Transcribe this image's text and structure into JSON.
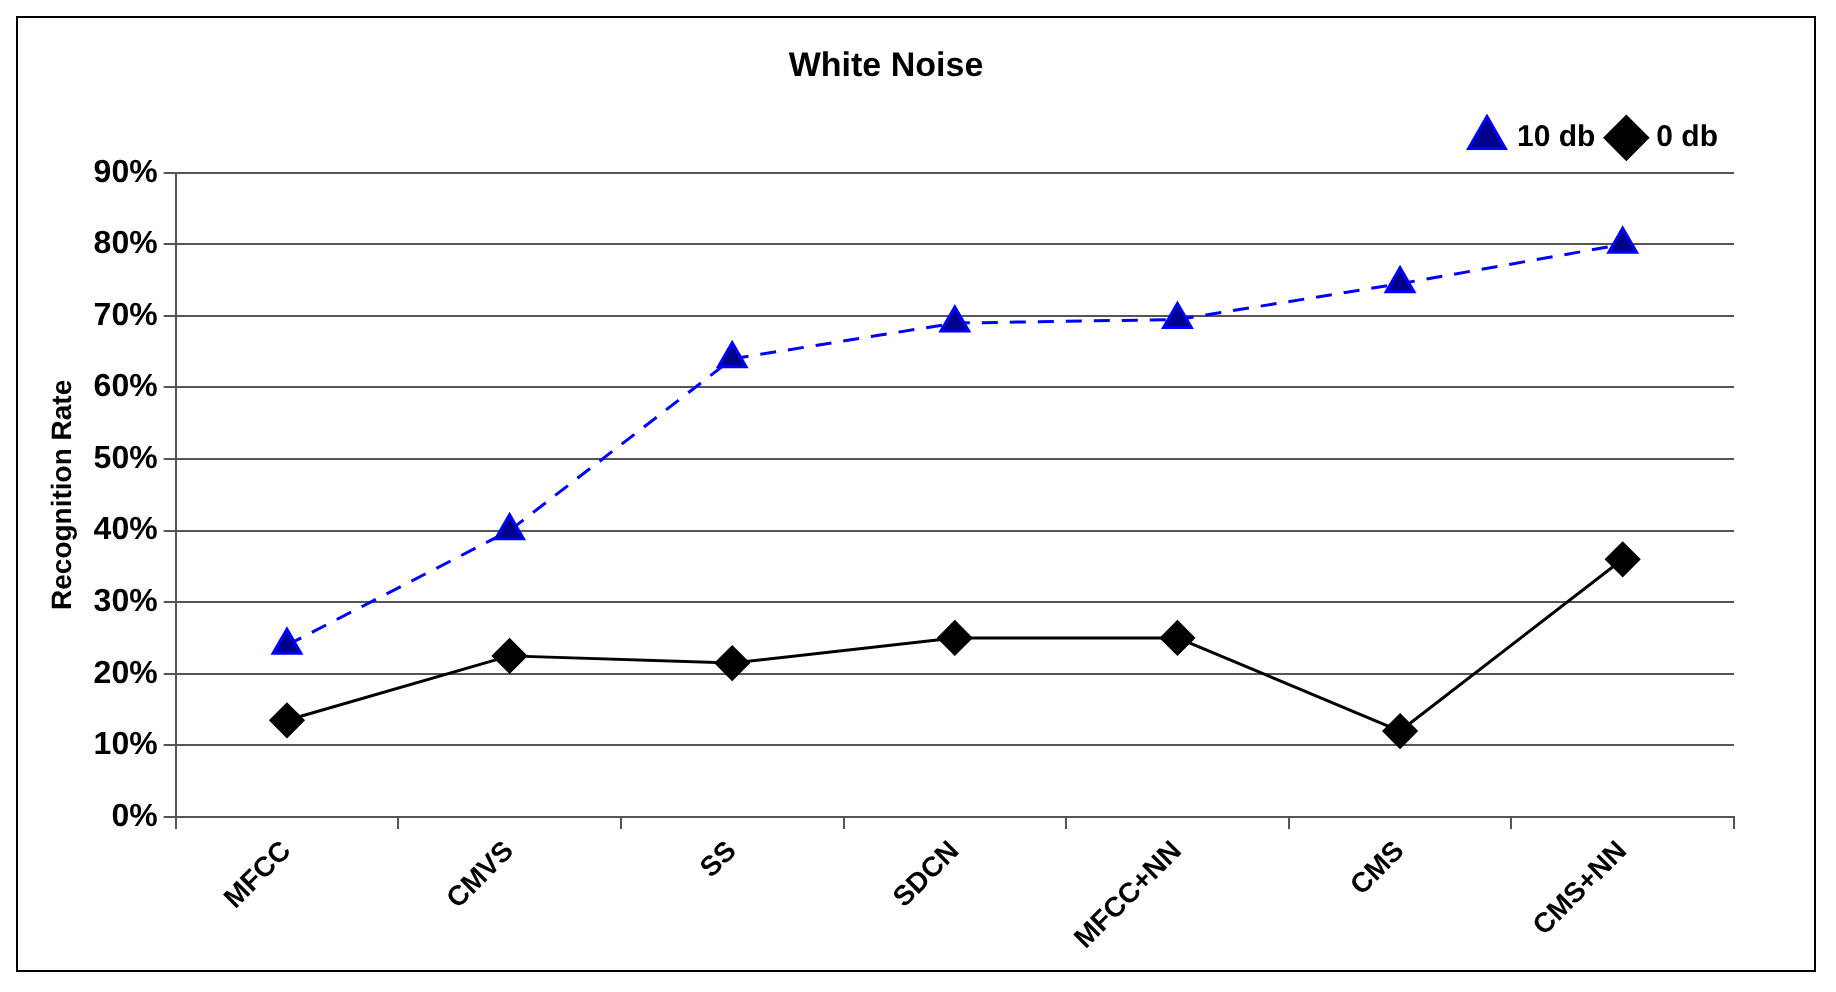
{
  "chart_data": {
    "type": "line",
    "title": "White Noise",
    "ylabel": "Recognition Rate",
    "categories": [
      "MFCC",
      "CMVS",
      "SS",
      "SDCN",
      "MFCC+NN",
      "CMS",
      "CMS+NN"
    ],
    "series": [
      {
        "name": "10 db",
        "color": "#0000ff",
        "marker": "triangle",
        "line_style": "dashed",
        "values": [
          24,
          40,
          64,
          69,
          69.5,
          74.5,
          80
        ]
      },
      {
        "name": "0 db",
        "color": "#000000",
        "marker": "diamond",
        "line_style": "solid",
        "values": [
          13.5,
          22.5,
          21.5,
          25,
          25,
          12,
          36
        ]
      }
    ],
    "ylim": [
      0,
      90
    ],
    "yticks": [
      {
        "value": 0,
        "label": "0%"
      },
      {
        "value": 10,
        "label": "10%"
      },
      {
        "value": 20,
        "label": "20%"
      },
      {
        "value": 30,
        "label": "30%"
      },
      {
        "value": 40,
        "label": "40%"
      },
      {
        "value": 50,
        "label": "50%"
      },
      {
        "value": 60,
        "label": "60%"
      },
      {
        "value": 70,
        "label": "70%"
      },
      {
        "value": 80,
        "label": "80%"
      },
      {
        "value": 90,
        "label": "90%"
      }
    ],
    "grid": "y",
    "legend": "top right"
  }
}
